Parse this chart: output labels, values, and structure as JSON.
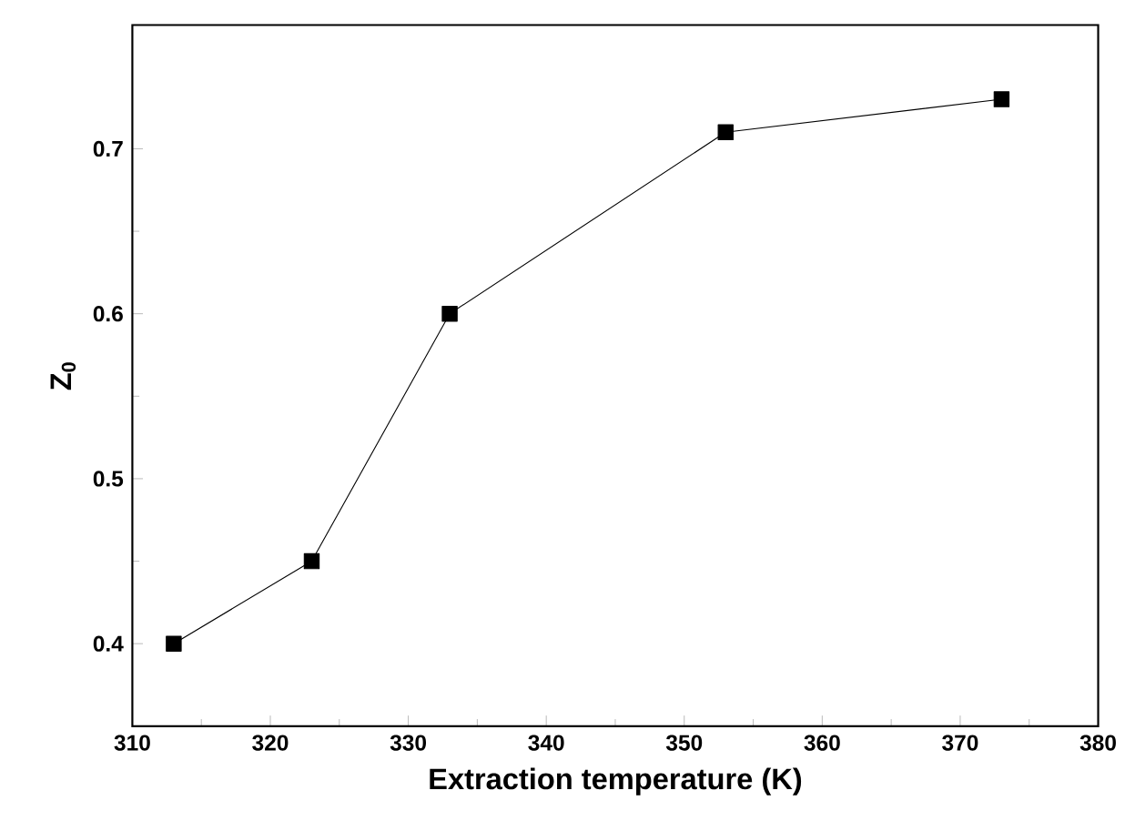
{
  "chart_data": {
    "type": "line",
    "xlabel": "Extraction temperature (K)",
    "ylabel": "Z$_{0}$",
    "x": [
      313,
      323,
      333,
      353,
      373
    ],
    "series": [
      {
        "color": "#000000",
        "values": [
          0.4,
          0.45,
          0.6,
          0.71,
          0.73
        ]
      }
    ],
    "xlim": [
      310,
      380
    ],
    "xticks": [
      310,
      320,
      330,
      340,
      350,
      360,
      370,
      380
    ],
    "ylim": [
      0.35,
      0.775
    ],
    "yticks": [
      0.4,
      0.5,
      0.6,
      0.7
    ],
    "grid": false,
    "marker": "square",
    "line_style": "solid"
  }
}
